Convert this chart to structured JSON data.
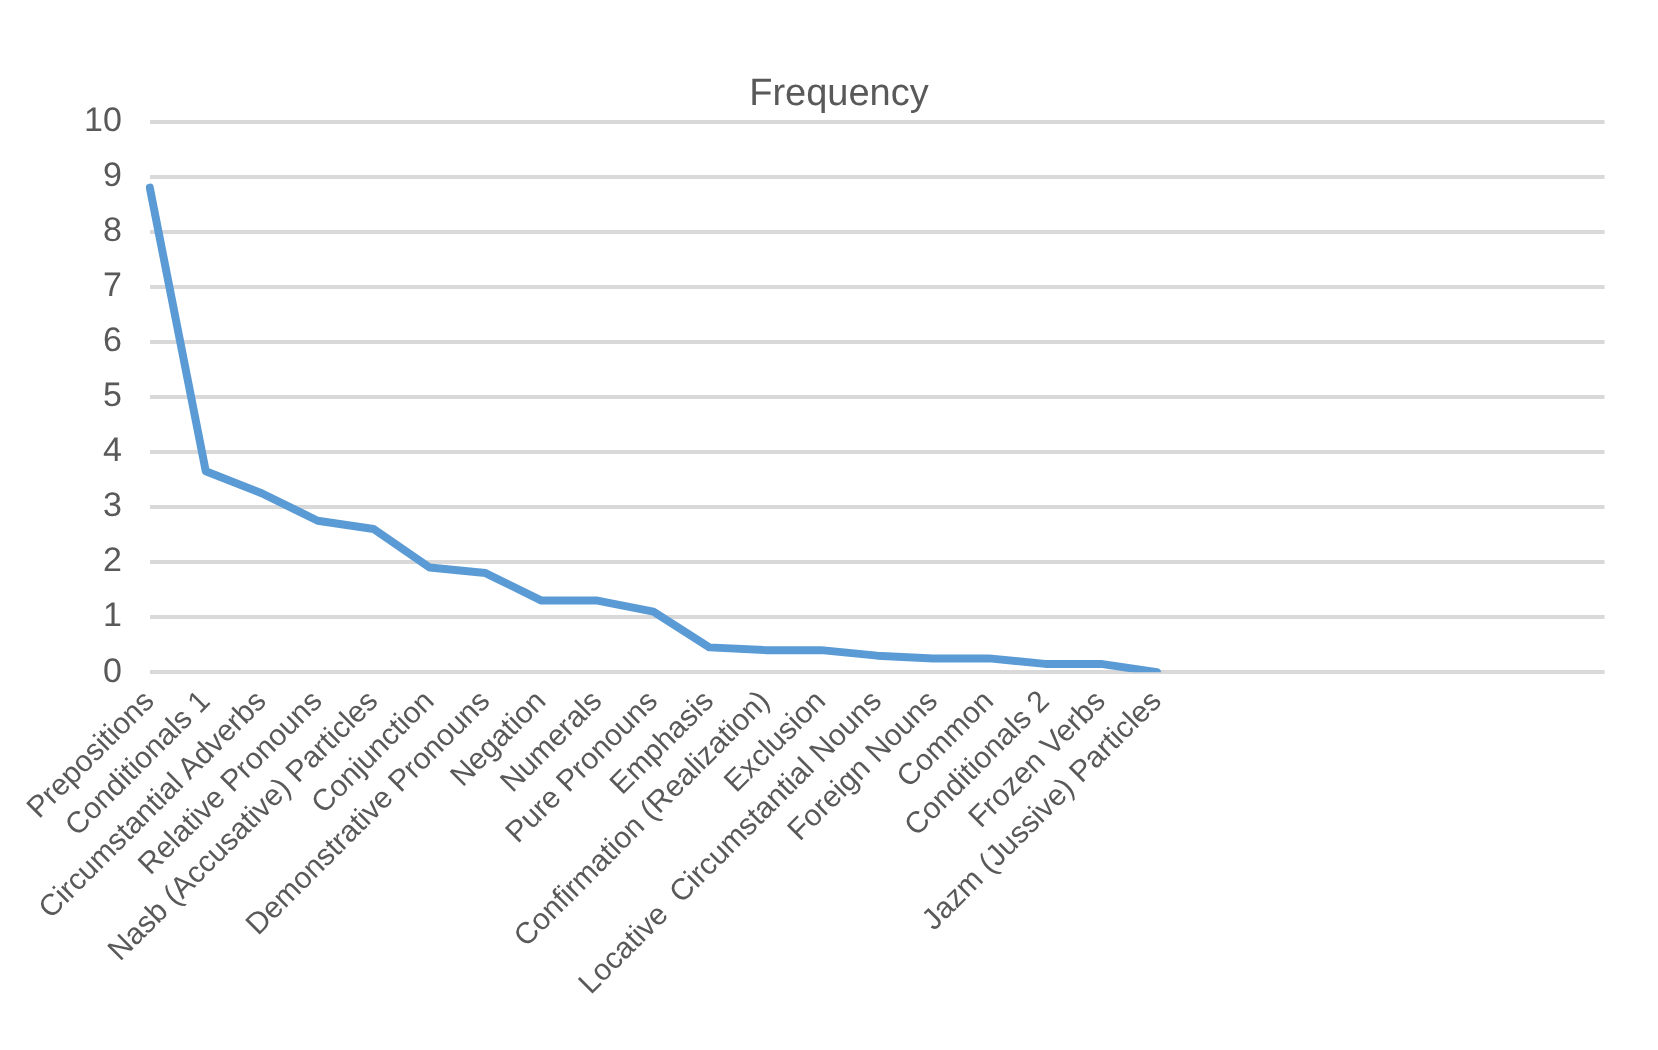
{
  "chart_data": {
    "type": "line",
    "title": "Frequency",
    "categories": [
      "Prepositions",
      "Conditionals 1",
      "Circumstantial Adverbs",
      "Relative Pronouns",
      "Nasb (Accusative) Particles",
      "Conjunction",
      "Demonstrative Pronouns",
      "Negation",
      "Numerals",
      "Pure Pronouns",
      "Emphasis",
      "Confirmation (Realization)",
      "Exclusion",
      "Locative  Circumstantial Nouns",
      "Foreign Nouns",
      "Common",
      "Conditionals 2",
      "Frozen Verbs",
      "Jazm (Jussive) Particles",
      null,
      null,
      null,
      null,
      null,
      null,
      null,
      null
    ],
    "series": [
      {
        "color": "#5b9bd5",
        "values": [
          8.8,
          3.65,
          3.25,
          2.75,
          2.6,
          1.9,
          1.8,
          1.3,
          1.3,
          1.1,
          0.45,
          0.4,
          0.4,
          0.3,
          0.25,
          0.25,
          0.15,
          0.15,
          0.0,
          null,
          null,
          null,
          null,
          null,
          null,
          null,
          null
        ]
      }
    ],
    "ylim": [
      0,
      10
    ],
    "yticks": [
      0,
      1,
      2,
      3,
      4,
      5,
      6,
      7,
      8,
      9,
      10
    ],
    "grid": "y",
    "legend": false,
    "marker": "none",
    "line_style": "solid"
  }
}
